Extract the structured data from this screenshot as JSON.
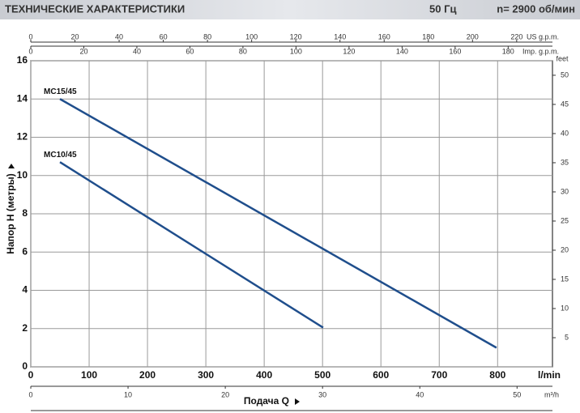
{
  "header": {
    "title": "ТЕХНИЧЕСКИЕ ХАРАКТЕРИСТИКИ",
    "frequency": "50 Гц",
    "speed": "n= 2900 об/мин"
  },
  "chart_data": {
    "type": "line",
    "x_label": "Подача Q",
    "y_label": "Напор H  (метры)",
    "x_unit": "l/min",
    "xlim": [
      0,
      894
    ],
    "xticks": [
      0,
      100,
      200,
      300,
      400,
      500,
      600,
      700,
      800
    ],
    "ylim": [
      0,
      16
    ],
    "yticks": [
      0,
      2,
      4,
      6,
      8,
      10,
      12,
      14,
      16
    ],
    "grid": true,
    "series": [
      {
        "name": "MC15/45",
        "color": "#1f4e8c",
        "x": [
          50,
          798
        ],
        "values": [
          14,
          1.0
        ]
      },
      {
        "name": "MC10/45",
        "color": "#1f4e8c",
        "x": [
          50,
          501
        ],
        "values": [
          10.7,
          2.05
        ]
      }
    ],
    "secondary_axes": [
      {
        "label": "US g.p.m.",
        "position": "top",
        "lim": [
          0,
          236.2
        ],
        "ticks": [
          0,
          20,
          40,
          60,
          80,
          100,
          120,
          140,
          160,
          180,
          200,
          220
        ]
      },
      {
        "label": "Imp. g.p.m.",
        "position": "top",
        "lim": [
          0,
          196.7
        ],
        "ticks": [
          0,
          20,
          40,
          60,
          80,
          100,
          120,
          140,
          160,
          180
        ]
      },
      {
        "label": "m³/h",
        "position": "bottom",
        "lim": [
          0,
          53.64
        ],
        "ticks": [
          0,
          10,
          20,
          30,
          40,
          50
        ]
      },
      {
        "label": "feet",
        "position": "right",
        "lim": [
          0,
          52.49
        ],
        "ticks": [
          5,
          10,
          15,
          20,
          25,
          30,
          35,
          40,
          45,
          50
        ]
      }
    ]
  }
}
